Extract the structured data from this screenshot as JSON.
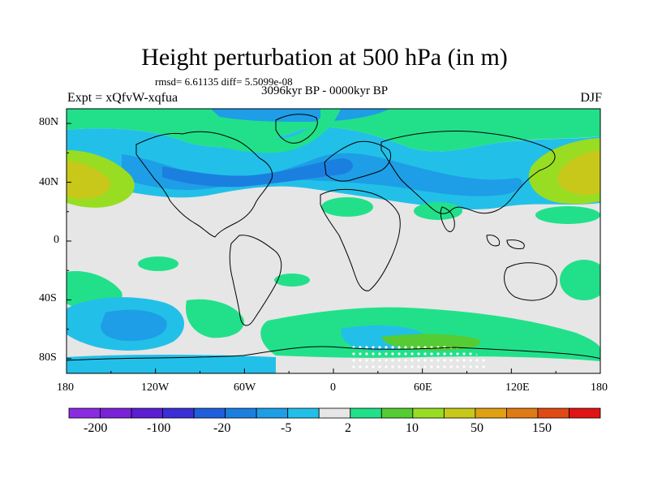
{
  "title": "Height perturbation at 500 hPa (in m)",
  "stats_line": "rmsd= 6.61135 diff= 5.5099e-08",
  "period": "3096kyr BP - 0000kyr BP",
  "experiment": "Expt = xQfvW-xqfua",
  "season": "DJF",
  "map": {
    "projection": "cylindrical-equidistant",
    "lon_range": [
      -180,
      180
    ],
    "lat_range": [
      -90,
      90
    ],
    "lat_ticks": [
      {
        "label": "80N"
      },
      {
        "label": "40N"
      },
      {
        "label": "0"
      },
      {
        "label": "40S"
      },
      {
        "label": "80S"
      }
    ],
    "lon_ticks": [
      {
        "label": "180"
      },
      {
        "label": "120W"
      },
      {
        "label": "60W"
      },
      {
        "label": "0"
      },
      {
        "label": "60E"
      },
      {
        "label": "120E"
      },
      {
        "label": "180"
      }
    ],
    "background_color": "#e6e6e6",
    "coastline_color": "#000000"
  },
  "colorbar": {
    "colors": [
      "#8a2be2",
      "#7b22d8",
      "#5b1fd2",
      "#3a2fd6",
      "#1f5fdc",
      "#1b7fe0",
      "#1e9ee6",
      "#22c0e8",
      "#e6e6e6",
      "#22e08a",
      "#55cc33",
      "#99dd22",
      "#c8c81a",
      "#e0a014",
      "#e07a14",
      "#e04a14",
      "#e01414"
    ],
    "tick_labels": [
      "-200",
      "-100",
      "-20",
      "-5",
      "2",
      "10",
      "50",
      "150"
    ]
  }
}
